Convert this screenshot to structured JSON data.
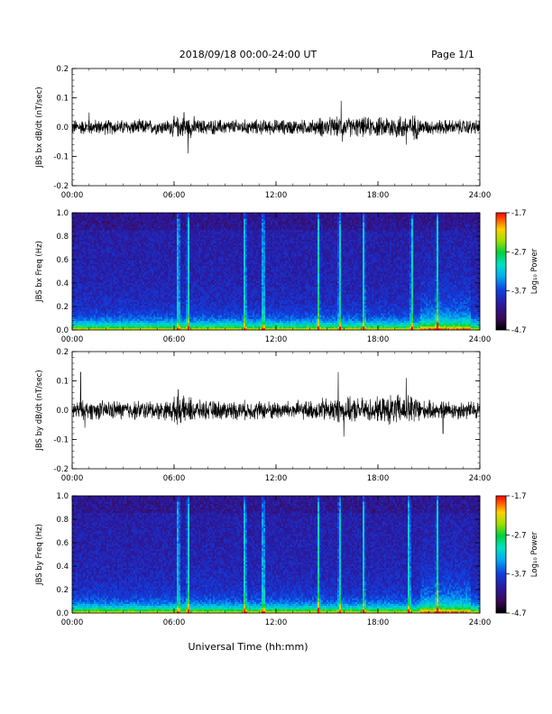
{
  "header": {
    "title": "2018/09/18  00:00-24:00 UT",
    "page": "Page 1/1"
  },
  "footer": {
    "xlabel": "Universal Time (hh:mm)"
  },
  "colorbar": {
    "title": "Log₁₀ Power",
    "ticks": [
      "-1.7",
      "-2.7",
      "-3.7",
      "-4.7"
    ]
  },
  "chart_data": [
    {
      "type": "line",
      "ylabel": "JBS bx dB/dt (nT/sec)",
      "xlim": [
        "00:00",
        "24:00"
      ],
      "ylim": [
        -0.2,
        0.2
      ],
      "xticks": [
        "00:00",
        "06:00",
        "12:00",
        "18:00",
        "24:00"
      ],
      "yticks": [
        "-0.2",
        "-0.1",
        "0.0",
        "0.1",
        "0.2"
      ],
      "baseline": 0.0,
      "typical_amplitude": 0.02,
      "peaks": [
        {
          "x": "06:50",
          "y": -0.09
        },
        {
          "x": "06:35",
          "y": 0.05
        },
        {
          "x": "15:50",
          "y": 0.09
        },
        {
          "x": "15:55",
          "y": -0.05
        },
        {
          "x": "19:40",
          "y": -0.06
        },
        {
          "x": "01:00",
          "y": 0.05
        }
      ]
    },
    {
      "type": "heatmap",
      "ylabel": "JBS bx Freq (Hz)",
      "xlim": [
        "00:00",
        "24:00"
      ],
      "ylim": [
        0.0,
        1.0
      ],
      "xticks": [
        "00:00",
        "06:00",
        "12:00",
        "18:00",
        "24:00"
      ],
      "yticks": [
        "0.0",
        "0.2",
        "0.4",
        "0.6",
        "0.8",
        "1.0"
      ],
      "zlim": [
        -4.7,
        -1.7
      ],
      "zlabel": "Log10 Power",
      "bursts": [
        "06:15",
        "06:50",
        "10:10",
        "11:15",
        "14:30",
        "15:45",
        "17:10",
        "20:00",
        "21:30"
      ]
    },
    {
      "type": "line",
      "ylabel": "JBS by dB/dt (nT/sec)",
      "xlim": [
        "00:00",
        "24:00"
      ],
      "ylim": [
        -0.2,
        0.2
      ],
      "xticks": [
        "00:00",
        "06:00",
        "12:00",
        "18:00",
        "24:00"
      ],
      "yticks": [
        "-0.2",
        "-0.1",
        "0.0",
        "0.1",
        "0.2"
      ],
      "baseline": 0.0,
      "typical_amplitude": 0.025,
      "peaks": [
        {
          "x": "00:30",
          "y": 0.13
        },
        {
          "x": "00:45",
          "y": -0.06
        },
        {
          "x": "06:15",
          "y": 0.07
        },
        {
          "x": "15:40",
          "y": 0.13
        },
        {
          "x": "16:00",
          "y": -0.09
        },
        {
          "x": "19:40",
          "y": 0.11
        },
        {
          "x": "21:50",
          "y": -0.08
        }
      ]
    },
    {
      "type": "heatmap",
      "ylabel": "JBS by Freq (Hz)",
      "xlim": [
        "00:00",
        "24:00"
      ],
      "ylim": [
        0.0,
        1.0
      ],
      "xticks": [
        "00:00",
        "06:00",
        "12:00",
        "18:00",
        "24:00"
      ],
      "yticks": [
        "0.0",
        "0.2",
        "0.4",
        "0.6",
        "0.8",
        "1.0"
      ],
      "zlim": [
        -4.7,
        -1.7
      ],
      "zlabel": "Log10 Power",
      "bursts": [
        "06:15",
        "06:50",
        "10:10",
        "11:15",
        "14:30",
        "15:45",
        "17:10",
        "19:50",
        "21:30"
      ]
    }
  ]
}
